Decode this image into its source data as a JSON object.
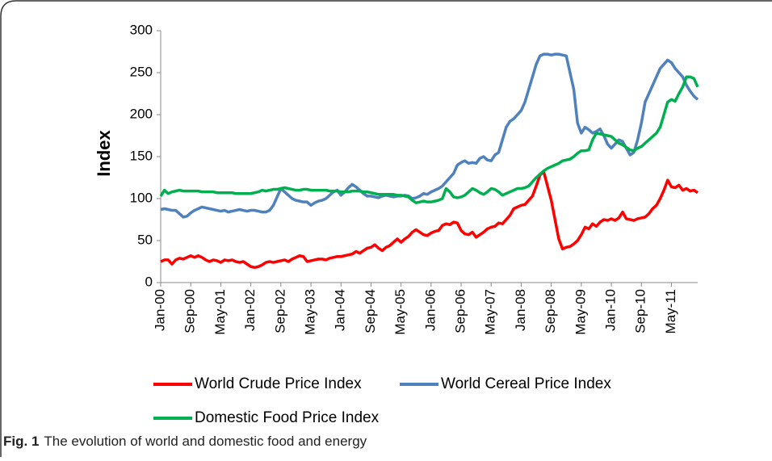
{
  "chart_data": {
    "type": "line",
    "y_label": "Index",
    "categories": [
      "Jan-00",
      null,
      null,
      null,
      null,
      null,
      null,
      null,
      "Sep-00",
      null,
      null,
      null,
      null,
      null,
      null,
      null,
      "May-01",
      null,
      null,
      null,
      null,
      null,
      null,
      null,
      "Jan-02",
      null,
      null,
      null,
      null,
      null,
      null,
      null,
      "Sep-02",
      null,
      null,
      null,
      null,
      null,
      null,
      null,
      "May-03",
      null,
      null,
      null,
      null,
      null,
      null,
      null,
      "Jan-04",
      null,
      null,
      null,
      null,
      null,
      null,
      null,
      "Sep-04",
      null,
      null,
      null,
      null,
      null,
      null,
      null,
      "May-05",
      null,
      null,
      null,
      null,
      null,
      null,
      null,
      "Jan-06",
      null,
      null,
      null,
      null,
      null,
      null,
      null,
      "Sep-06",
      null,
      null,
      null,
      null,
      null,
      null,
      null,
      "May-07",
      null,
      null,
      null,
      null,
      null,
      null,
      null,
      "Jan-08",
      null,
      null,
      null,
      null,
      null,
      null,
      null,
      "Sep-08",
      null,
      null,
      null,
      null,
      null,
      null,
      null,
      "May-09",
      null,
      null,
      null,
      null,
      null,
      null,
      null,
      "Jan-10",
      null,
      null,
      null,
      null,
      null,
      null,
      null,
      "Sep-10",
      null,
      null,
      null,
      null,
      null,
      null,
      null,
      "May-11",
      null,
      null,
      null,
      null,
      null,
      null,
      null
    ],
    "series": [
      {
        "name": "World Crude Price Index",
        "color": "#ff0000",
        "values": [
          25,
          27,
          27,
          22,
          27,
          29,
          28,
          30,
          32,
          30,
          32,
          30,
          27,
          25,
          27,
          26,
          24,
          27,
          26,
          27,
          25,
          24,
          25,
          22,
          19,
          18,
          19,
          21,
          24,
          25,
          24,
          25,
          26,
          27,
          25,
          28,
          30,
          32,
          31,
          25,
          26,
          27,
          28,
          28,
          27,
          29,
          30,
          31,
          31,
          32,
          33,
          34,
          37,
          35,
          38,
          41,
          42,
          45,
          41,
          38,
          42,
          44,
          48,
          52,
          48,
          52,
          55,
          60,
          63,
          60,
          57,
          56,
          59,
          61,
          62,
          68,
          70,
          69,
          72,
          71,
          62,
          58,
          57,
          60,
          54,
          57,
          60,
          64,
          66,
          67,
          71,
          70,
          75,
          80,
          88,
          90,
          92,
          93,
          98,
          103,
          115,
          128,
          132,
          115,
          98,
          75,
          52,
          40,
          42,
          43,
          46,
          50,
          57,
          66,
          64,
          70,
          67,
          72,
          75,
          74,
          76,
          74,
          77,
          84,
          76,
          75,
          74,
          76,
          77,
          78,
          82,
          88,
          92,
          100,
          110,
          122,
          114,
          113,
          116,
          110,
          112,
          109,
          110,
          107
        ]
      },
      {
        "name": "World Cereal Price Index",
        "color": "#4f81bd",
        "values": [
          87,
          88,
          87,
          86,
          86,
          82,
          78,
          79,
          83,
          86,
          88,
          90,
          89,
          88,
          87,
          86,
          85,
          86,
          84,
          85,
          86,
          87,
          86,
          85,
          86,
          86,
          85,
          84,
          84,
          86,
          92,
          102,
          112,
          108,
          104,
          100,
          98,
          97,
          96,
          96,
          92,
          95,
          97,
          98,
          100,
          104,
          108,
          110,
          104,
          108,
          113,
          117,
          114,
          110,
          106,
          103,
          103,
          102,
          101,
          103,
          104,
          103,
          102,
          103,
          103,
          104,
          103,
          100,
          101,
          103,
          106,
          105,
          108,
          110,
          112,
          115,
          120,
          125,
          130,
          140,
          143,
          145,
          142,
          143,
          142,
          148,
          150,
          146,
          145,
          152,
          155,
          170,
          185,
          192,
          195,
          200,
          205,
          215,
          230,
          245,
          260,
          270,
          272,
          272,
          271,
          272,
          272,
          271,
          270,
          250,
          230,
          190,
          178,
          185,
          182,
          178,
          180,
          183,
          175,
          165,
          160,
          165,
          170,
          168,
          160,
          152,
          155,
          170,
          190,
          215,
          225,
          235,
          245,
          255,
          260,
          265,
          262,
          255,
          250,
          245,
          235,
          228,
          222,
          218
        ]
      },
      {
        "name": "Domestic Food Price Index",
        "color": "#00b050",
        "values": [
          103,
          110,
          106,
          108,
          109,
          110,
          109,
          109,
          109,
          109,
          109,
          108,
          108,
          108,
          108,
          107,
          107,
          107,
          107,
          107,
          106,
          106,
          106,
          106,
          106,
          107,
          108,
          110,
          109,
          110,
          111,
          111,
          112,
          113,
          112,
          111,
          110,
          110,
          111,
          111,
          110,
          110,
          110,
          110,
          110,
          109,
          109,
          109,
          108,
          108,
          108,
          109,
          109,
          109,
          108,
          108,
          107,
          106,
          105,
          105,
          105,
          105,
          105,
          104,
          104,
          103,
          102,
          98,
          95,
          96,
          97,
          96,
          96,
          97,
          98,
          100,
          112,
          108,
          102,
          101,
          102,
          104,
          108,
          112,
          110,
          107,
          105,
          108,
          112,
          111,
          108,
          104,
          106,
          108,
          110,
          112,
          112,
          113,
          115,
          120,
          125,
          129,
          133,
          136,
          138,
          140,
          142,
          145,
          146,
          147,
          150,
          154,
          157,
          157,
          158,
          170,
          178,
          177,
          176,
          175,
          174,
          170,
          166,
          164,
          161,
          158,
          157,
          160,
          162,
          166,
          170,
          174,
          178,
          185,
          200,
          215,
          218,
          216,
          225,
          233,
          245,
          245,
          243,
          233
        ]
      }
    ],
    "ylim": [
      0,
      300
    ],
    "yticks": [
      0,
      50,
      100,
      150,
      200,
      250,
      300
    ],
    "grid": false,
    "legend": "bottom"
  },
  "caption": {
    "label": "Fig. 1",
    "text": "The evolution of world and domestic food and energy"
  }
}
